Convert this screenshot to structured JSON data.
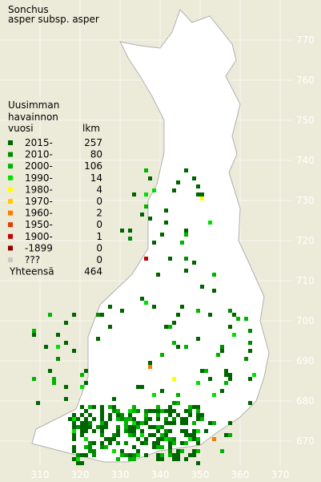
{
  "title": [
    "Sonchus",
    "asper subsp. asper"
  ],
  "legend": {
    "header": [
      "Uusimman",
      "havainnon"
    ],
    "columns": [
      "vuosi",
      "lkm"
    ],
    "rows": [
      {
        "label": "2015-",
        "count": 257,
        "color": "#006400"
      },
      {
        "label": "2010-",
        "count": 80,
        "color": "#008c00"
      },
      {
        "label": "2000-",
        "count": 106,
        "color": "#00b400"
      },
      {
        "label": "1990-",
        "count": 14,
        "color": "#00e000"
      },
      {
        "label": "1980-",
        "count": 4,
        "color": "#ffff00"
      },
      {
        "label": "1970-",
        "count": 0,
        "color": "#ffc800"
      },
      {
        "label": "1960-",
        "count": 2,
        "color": "#ff7800"
      },
      {
        "label": "1950-",
        "count": 0,
        "color": "#e03c00"
      },
      {
        "label": "1900-",
        "count": 1,
        "color": "#c80000"
      },
      {
        "label": "-1899",
        "count": 0,
        "color": "#8c0000"
      },
      {
        "label": "???",
        "count": 0,
        "color": "#c8c8c8"
      }
    ],
    "total_label": "Yhteensä",
    "total": 464
  },
  "grid": {
    "northings": [
      770,
      760,
      750,
      740,
      730,
      720,
      710,
      700,
      690,
      680,
      670
    ],
    "eastings": [
      310,
      320,
      330,
      340,
      350,
      360,
      370
    ]
  }
}
